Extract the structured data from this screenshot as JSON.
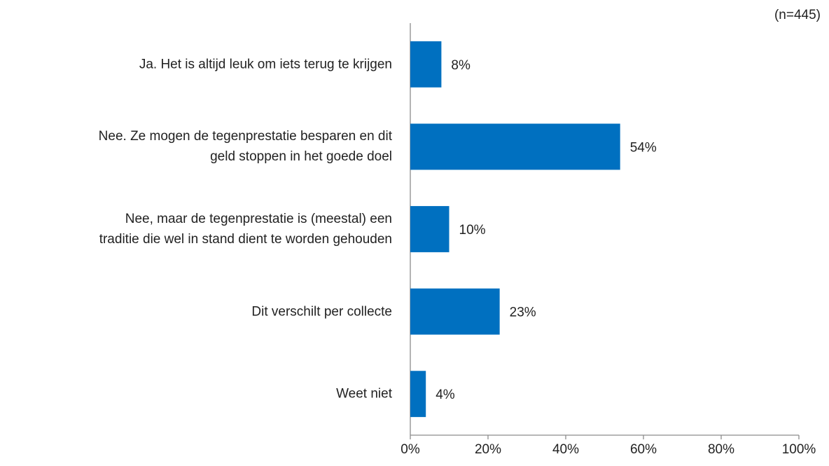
{
  "chart_data": {
    "type": "bar",
    "orientation": "horizontal",
    "annotation": "(n=445)",
    "categories": [
      "Ja. Het is altijd leuk om iets terug te krijgen",
      "Nee. Ze mogen de tegenprestatie besparen en dit\ngeld stoppen in het goede doel",
      "Nee, maar de tegenprestatie is (meestal) een\ntraditie die wel in stand dient te worden gehouden",
      "Dit verschilt per collecte",
      "Weet niet"
    ],
    "values": [
      8,
      54,
      10,
      23,
      4
    ],
    "value_labels": [
      "8%",
      "54%",
      "10%",
      "23%",
      "4%"
    ],
    "color": "#0070c0",
    "xlim": [
      0,
      100
    ],
    "xticks": [
      {
        "value": 0,
        "label": "0%"
      },
      {
        "value": 20,
        "label": "20%"
      },
      {
        "value": 40,
        "label": "40%"
      },
      {
        "value": 60,
        "label": "60%"
      },
      {
        "value": 80,
        "label": "80%"
      },
      {
        "value": 100,
        "label": "100%"
      }
    ],
    "grid": false
  }
}
